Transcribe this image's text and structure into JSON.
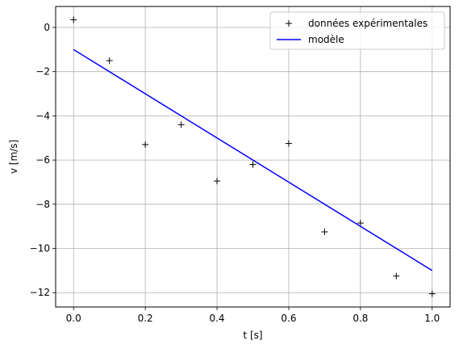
{
  "chart_data": {
    "type": "line",
    "title": "",
    "xlabel": "t [s]",
    "ylabel": "v [m/s]",
    "xlim": [
      -0.05,
      1.05
    ],
    "ylim": [
      -12.65,
      0.95
    ],
    "grid": true,
    "legend_position": "top-right",
    "x_ticks": [
      0.0,
      0.2,
      0.4,
      0.6,
      0.8,
      1.0
    ],
    "x_tick_labels": [
      "0.0",
      "0.2",
      "0.4",
      "0.6",
      "0.8",
      "1.0"
    ],
    "y_ticks": [
      0,
      -2,
      -4,
      -6,
      -8,
      -10,
      -12
    ],
    "y_tick_labels": [
      "0",
      "−2",
      "−4",
      "−6",
      "−8",
      "−10",
      "−12"
    ],
    "series": [
      {
        "name": "données expérimentales",
        "kind": "scatter",
        "marker": "+",
        "color": "#000000",
        "x": [
          0.0,
          0.1,
          0.2,
          0.3,
          0.4,
          0.5,
          0.6,
          0.7,
          0.8,
          0.9,
          1.0
        ],
        "y": [
          0.35,
          -1.5,
          -5.3,
          -4.4,
          -6.95,
          -6.2,
          -5.25,
          -9.25,
          -8.85,
          -11.25,
          -12.05
        ]
      },
      {
        "name": "modèle",
        "kind": "line",
        "color": "#0000ff",
        "x": [
          0.0,
          1.0
        ],
        "y": [
          -1.0,
          -11.0
        ]
      }
    ]
  }
}
